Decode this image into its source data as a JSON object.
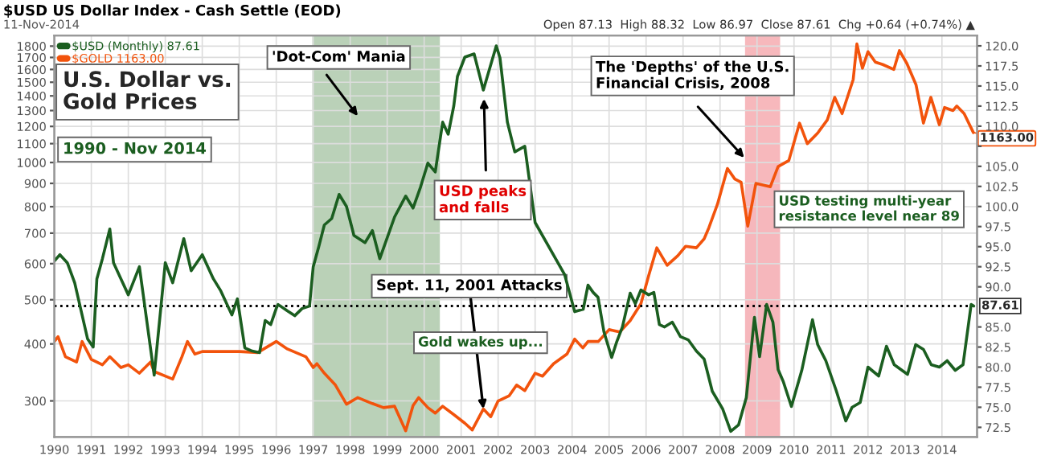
{
  "chart_data": {
    "type": "line",
    "title": "U.S. Dollar vs. Gold Prices",
    "subtitle": "1990 - Nov 2014",
    "xlim": [
      1990,
      2014.95
    ],
    "xticks": [
      1990,
      1991,
      1992,
      1993,
      1994,
      1995,
      1996,
      1997,
      1998,
      1999,
      2000,
      2001,
      2002,
      2003,
      2004,
      2005,
      2006,
      2007,
      2008,
      2009,
      2010,
      2011,
      2012,
      2013,
      2014
    ],
    "log": true,
    "ylim": [
      250,
      1900
    ],
    "yticks": [
      300,
      400,
      500,
      600,
      700,
      800,
      900,
      1000,
      1100,
      1200,
      1300,
      1400,
      1500,
      1600,
      1700,
      1800
    ],
    "y2lim": [
      71.3,
      121.3
    ],
    "y2ticks": [
      {
        "value": 72.5,
        "label": "72.5"
      },
      {
        "value": 75,
        "label": "75.0"
      },
      {
        "value": 77.5,
        "label": "77.5"
      },
      {
        "value": 80,
        "label": "80.0"
      },
      {
        "value": 82.5,
        "label": "82.5"
      },
      {
        "value": 85,
        "label": "85.0"
      },
      {
        "value": 90,
        "label": "90.0"
      },
      {
        "value": 92.5,
        "label": "92.5"
      },
      {
        "value": 95,
        "label": "95.0"
      },
      {
        "value": 97.5,
        "label": "97.5"
      },
      {
        "value": 100,
        "label": "100.0"
      },
      {
        "value": 102.5,
        "label": "102.5"
      },
      {
        "value": 105,
        "label": "105.0"
      },
      {
        "value": 107.5,
        "label": null
      },
      {
        "value": 110,
        "label": "110.0"
      },
      {
        "value": 112.5,
        "label": "112.5"
      },
      {
        "value": 115,
        "label": "115.0"
      },
      {
        "value": 117.5,
        "label": "117.5"
      },
      {
        "value": 120,
        "label": "120.0"
      }
    ],
    "grid": true,
    "legend": "top left",
    "marker": "none",
    "line_style": "solid",
    "series": [
      {
        "name": "$USD (Monthly) 87.61",
        "color": "#1b5e20",
        "axis": "y2",
        "x": [
          1990.0,
          1990.15,
          1990.35,
          1990.55,
          1990.75,
          1990.9,
          1991.05,
          1991.15,
          1991.3,
          1991.5,
          1991.6,
          1991.8,
          1992.0,
          1992.3,
          1992.7,
          1993.0,
          1993.2,
          1993.5,
          1993.7,
          1994.0,
          1994.3,
          1994.5,
          1994.8,
          1994.95,
          1995.15,
          1995.35,
          1995.55,
          1995.7,
          1995.85,
          1996.0,
          1996.05,
          1996.3,
          1996.5,
          1996.7,
          1996.9,
          1997.0,
          1997.15,
          1997.3,
          1997.5,
          1997.7,
          1997.9,
          1998.1,
          1998.4,
          1998.6,
          1998.8,
          1999.2,
          1999.5,
          1999.7,
          1999.9,
          2000.1,
          2000.3,
          2000.5,
          2000.65,
          2000.8,
          2000.9,
          2001.1,
          2001.35,
          2001.6,
          2001.95,
          2002.05,
          2002.25,
          2002.45,
          2002.72,
          2003.0,
          2003.43,
          2003.8,
          2004.07,
          2004.3,
          2004.43,
          2004.57,
          2004.7,
          2004.86,
          2005.07,
          2005.21,
          2005.36,
          2005.57,
          2005.71,
          2005.86,
          2006.07,
          2006.21,
          2006.36,
          2006.5,
          2006.71,
          2006.93,
          2007.14,
          2007.36,
          2007.57,
          2007.79,
          2008.07,
          2008.29,
          2008.5,
          2008.71,
          2008.93,
          2009.07,
          2009.26,
          2009.43,
          2009.57,
          2009.71,
          2009.93,
          2010.21,
          2010.5,
          2010.64,
          2010.86,
          2011.14,
          2011.4,
          2011.57,
          2011.79,
          2012.0,
          2012.29,
          2012.5,
          2012.71,
          2013.07,
          2013.29,
          2013.5,
          2013.71,
          2013.93,
          2014.14,
          2014.36,
          2014.57,
          2014.79,
          2014.86
        ],
        "values": [
          93.2,
          94.0,
          93.0,
          90.5,
          86.5,
          83.5,
          82.5,
          91.0,
          93.5,
          97.2,
          93.0,
          91.0,
          89.0,
          92.5,
          79.0,
          93.0,
          90.5,
          96.0,
          92.0,
          94.0,
          91.0,
          89.5,
          86.5,
          88.5,
          82.4,
          82.0,
          81.8,
          85.8,
          85.3,
          87.3,
          87.8,
          87.0,
          86.4,
          87.3,
          87.6,
          92.5,
          95.0,
          97.7,
          98.5,
          101.5,
          100.0,
          96.4,
          95.5,
          97.0,
          93.5,
          98.7,
          101.3,
          99.8,
          102.4,
          105.4,
          104.3,
          110.5,
          109.0,
          112.5,
          116.2,
          118.6,
          119.0,
          114.5,
          120.0,
          118.5,
          110.5,
          106.8,
          107.5,
          98.0,
          94.5,
          91.5,
          86.9,
          87.2,
          90.2,
          89.3,
          88.7,
          84.4,
          81.2,
          83.2,
          85.0,
          89.2,
          87.9,
          89.6,
          89.0,
          89.3,
          85.3,
          85.0,
          85.6,
          83.8,
          83.4,
          82.0,
          81.0,
          77.0,
          74.8,
          72.0,
          72.8,
          76.2,
          86.2,
          81.3,
          87.8,
          85.6,
          79.7,
          78.2,
          75.1,
          79.6,
          85.9,
          82.8,
          80.8,
          77.1,
          73.3,
          75.0,
          75.6,
          80.0,
          78.9,
          82.6,
          80.3,
          79.1,
          82.8,
          82.2,
          80.3,
          80.0,
          80.8,
          79.6,
          80.3,
          87.8,
          87.61
        ]
      },
      {
        "name": "$GOLD 1163.00",
        "color": "#f2530c",
        "x": [
          1990.0,
          1990.1,
          1990.3,
          1990.6,
          1990.75,
          1991.0,
          1991.3,
          1991.5,
          1991.8,
          1992.0,
          1992.3,
          1992.6,
          1992.7,
          1993.0,
          1993.2,
          1993.45,
          1993.6,
          1993.8,
          1994.0,
          1994.5,
          1995.0,
          1995.5,
          1996.0,
          1996.3,
          1996.8,
          1997.0,
          1997.1,
          1997.3,
          1997.6,
          1997.9,
          1998.2,
          1998.6,
          1998.9,
          1999.2,
          1999.5,
          1999.7,
          1999.85,
          2000.1,
          2000.3,
          2000.5,
          2000.8,
          2001.1,
          2001.3,
          2001.6,
          2001.8,
          2002.0,
          2002.3,
          2002.5,
          2002.72,
          2003.0,
          2003.2,
          2003.5,
          2003.86,
          2004.07,
          2004.29,
          2004.43,
          2004.71,
          2005.0,
          2005.29,
          2005.57,
          2005.86,
          2006.07,
          2006.29,
          2006.57,
          2006.86,
          2007.07,
          2007.36,
          2007.57,
          2007.7,
          2007.93,
          2008.2,
          2008.4,
          2008.57,
          2008.75,
          2008.97,
          2009.36,
          2009.57,
          2009.86,
          2010.15,
          2010.36,
          2010.64,
          2010.9,
          2011.1,
          2011.3,
          2011.6,
          2011.7,
          2011.85,
          2012.0,
          2012.2,
          2012.4,
          2012.7,
          2012.85,
          2013.05,
          2013.3,
          2013.5,
          2013.7,
          2013.93,
          2014.07,
          2014.3,
          2014.4,
          2014.6,
          2014.85
        ],
        "values": [
          405,
          415,
          375,
          365,
          405,
          370,
          360,
          375,
          355,
          360,
          345,
          365,
          348,
          340,
          335,
          375,
          405,
          380,
          385,
          385,
          385,
          383,
          405,
          390,
          375,
          355,
          362,
          345,
          325,
          295,
          305,
          296,
          290,
          292,
          258,
          293,
          305,
          290,
          282,
          292,
          280,
          268,
          259,
          288,
          277,
          300,
          308,
          325,
          316,
          345,
          340,
          362,
          380,
          410,
          392,
          405,
          405,
          430,
          425,
          450,
          490,
          565,
          650,
          595,
          625,
          655,
          650,
          680,
          720,
          810,
          970,
          920,
          905,
          725,
          900,
          885,
          980,
          1010,
          1220,
          1100,
          1160,
          1240,
          1390,
          1280,
          1520,
          1820,
          1610,
          1750,
          1660,
          1640,
          1600,
          1760,
          1650,
          1480,
          1220,
          1390,
          1210,
          1320,
          1300,
          1330,
          1280,
          1163
        ]
      }
    ],
    "bands": [
      {
        "axis": "x",
        "from": 1997.0,
        "to": 2000.4,
        "color": "#a3c2a0"
      },
      {
        "axis": "x",
        "from": 2008.7,
        "to": 2009.6,
        "color": "#f4a0a6"
      }
    ],
    "ref_lines": [
      {
        "axis": "y2",
        "value": 87.61,
        "label": "87.61",
        "line_style": "dotted",
        "color": "#000000"
      }
    ],
    "annotations": [
      "'Dot-Com' Mania",
      "The 'Depths' of the U.S.\nFinancial Crisis, 2008",
      "USD peaks\nand falls",
      {
        "text": "Sept. 11, 2001 Attacks",
        "x": 2001.6,
        "y": 288
      },
      "Gold wakes up...",
      "USD testing multi-year\nresistance level near 89",
      {
        "text": "1163.00",
        "x": 2014.85,
        "y": 1163
      },
      "$USD US Dollar Index - Cash Settle (EOD)",
      "11-Nov-2014",
      "Open 87.13  High 88.32  Low 86.97  Close 87.61  Chg +0.64 (+0.74%) ▲"
    ]
  }
}
